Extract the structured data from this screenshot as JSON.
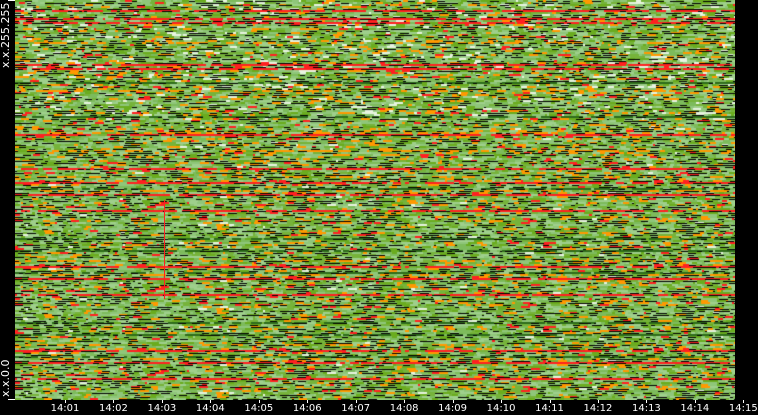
{
  "chart_data": {
    "type": "heatmap",
    "title": "",
    "y_tick_labels": {
      "top": "x.x.255.255",
      "bottom": "x.x.0.0"
    },
    "x_tick_labels": [
      "14:01",
      "14:02",
      "14:03",
      "14:04",
      "14:05",
      "14:06",
      "14:07",
      "14:08",
      "14:09",
      "14:10",
      "14:11",
      "14:12",
      "14:13",
      "14:14",
      "14:15"
    ],
    "color_scale": {
      "low": "#8fc67a",
      "mid_low": "#6aac1e",
      "mid": "#ff9900",
      "high": "#ff2020",
      "sparse": "#2d6b1a",
      "none": "#ffffff"
    },
    "annotation": {
      "type": "vertical-line",
      "at": "14:03",
      "color": "#ff2020"
    },
    "grid": false,
    "legend": "none"
  }
}
